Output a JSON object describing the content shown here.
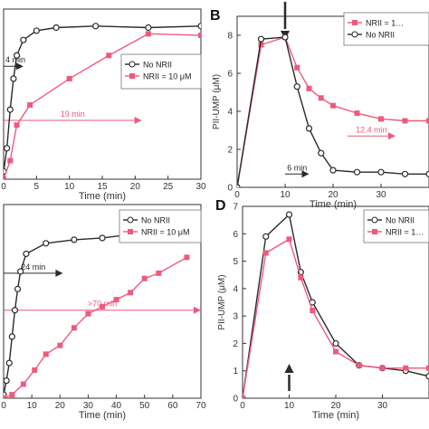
{
  "colors": {
    "black": "#2a2a2a",
    "pink": "#ee5a7e",
    "axis": "#333333"
  },
  "chart_data": [
    {
      "panel_label": "",
      "type": "line",
      "xlabel": "Time (min)",
      "ylabel": "",
      "xlim": [
        0,
        30
      ],
      "ylim": [
        0,
        1.1
      ],
      "xticks": [
        "0",
        "5",
        "10",
        "15",
        "20",
        "25",
        "30"
      ],
      "yticks": [],
      "legend": {
        "placement": "center-right",
        "entries": [
          "No NRII",
          "NRII = 10 μM"
        ]
      },
      "series": [
        {
          "name": "No NRII",
          "color": "#2a2a2a",
          "marker": "circle",
          "x": [
            0,
            0.5,
            1,
            1.5,
            2,
            3,
            5,
            8,
            14,
            22,
            30
          ],
          "y": [
            0.05,
            0.2,
            0.45,
            0.65,
            0.8,
            0.9,
            0.96,
            0.98,
            0.99,
            0.98,
            0.99
          ]
        },
        {
          "name": "NRII = 10 μM",
          "color": "#ee5a7e",
          "marker": "square",
          "x": [
            0,
            1,
            2,
            4,
            10,
            16,
            22,
            30
          ],
          "y": [
            0.0,
            0.12,
            0.35,
            0.48,
            0.65,
            0.8,
            0.94,
            0.93
          ]
        }
      ],
      "annotations": [
        {
          "text": "4 min",
          "color": "#2a2a2a",
          "x": 0,
          "y": 0.73,
          "x_end": 3
        },
        {
          "text": "19 min",
          "color": "#ee5a7e",
          "x": 0,
          "y": 0.38,
          "x_end": 21
        }
      ]
    },
    {
      "panel_label": "B",
      "type": "line",
      "xlabel": "Time (min)",
      "ylabel": "PII-UMP (μM)",
      "xlim": [
        0,
        40
      ],
      "ylim": [
        0,
        9
      ],
      "xticks": [
        "0",
        "10",
        "20",
        "30"
      ],
      "yticks": [
        "0",
        "2",
        "4",
        "6",
        "8"
      ],
      "legend": {
        "placement": "top-right",
        "entries": [
          "NRII = 1…",
          "No NRII"
        ]
      },
      "series": [
        {
          "name": "NRII = 1…",
          "color": "#ee5a7e",
          "marker": "square",
          "x": [
            0,
            5,
            10,
            12.5,
            15,
            17.5,
            20,
            25,
            30,
            35,
            40
          ],
          "y": [
            0,
            7.5,
            7.9,
            6.3,
            5.2,
            4.7,
            4.3,
            3.9,
            3.6,
            3.5,
            3.5
          ]
        },
        {
          "name": "No NRII",
          "color": "#2a2a2a",
          "marker": "circle",
          "x": [
            0,
            5,
            10,
            12.5,
            15,
            17.5,
            20,
            25,
            30,
            35,
            40
          ],
          "y": [
            0,
            7.8,
            7.9,
            5.3,
            3.1,
            1.8,
            0.9,
            0.8,
            0.8,
            0.7,
            0.7
          ]
        }
      ],
      "annotations": [
        {
          "text": "12.4 min",
          "color": "#ee5a7e",
          "x": 23,
          "y": 2.7,
          "x_end": 33
        },
        {
          "text": "6 min",
          "color": "#2a2a2a",
          "x": 10,
          "y": 0.7,
          "x_end": 15
        },
        {
          "text": "",
          "color": "#2a2a2a",
          "kind": "down-arrow",
          "x": 10
        }
      ]
    },
    {
      "panel_label": "",
      "type": "line",
      "xlabel": "Time (min)",
      "ylabel": "",
      "xlim": [
        0,
        70
      ],
      "ylim": [
        0,
        1.1
      ],
      "xticks": [
        "0",
        "10",
        "20",
        "30",
        "40",
        "50",
        "60",
        "70"
      ],
      "yticks": [],
      "legend": {
        "placement": "top-right",
        "entries": [
          "No NRII",
          "NRII = 10 μM"
        ]
      },
      "series": [
        {
          "name": "No NRII",
          "color": "#2a2a2a",
          "marker": "circle",
          "x": [
            0,
            1,
            2,
            3,
            4,
            5,
            6,
            8,
            15,
            25,
            35,
            45,
            65
          ],
          "y": [
            0.02,
            0.1,
            0.2,
            0.35,
            0.5,
            0.62,
            0.72,
            0.82,
            0.88,
            0.9,
            0.91,
            0.93,
            0.97
          ]
        },
        {
          "name": "NRII = 10 μM",
          "color": "#ee5a7e",
          "marker": "square",
          "x": [
            0,
            3,
            7,
            11,
            15,
            20,
            25,
            30,
            35,
            40,
            45,
            50,
            55,
            65
          ],
          "y": [
            0.0,
            0.02,
            0.08,
            0.16,
            0.25,
            0.3,
            0.4,
            0.48,
            0.52,
            0.56,
            0.6,
            0.68,
            0.71,
            0.8
          ]
        }
      ],
      "annotations": [
        {
          "text": "24 min",
          "color": "#2a2a2a",
          "x": 0,
          "y": 0.71,
          "x_end": 21
        },
        {
          "text": ">70 min",
          "color": "#ee5a7e",
          "x": 0,
          "y": 0.5,
          "x_end": 70
        }
      ]
    },
    {
      "panel_label": "D",
      "type": "line",
      "xlabel": "Time (min)",
      "ylabel": "PII-UMP (μM)",
      "xlim": [
        0,
        40
      ],
      "ylim": [
        0,
        7
      ],
      "xticks": [
        "0",
        "10",
        "20",
        "30"
      ],
      "yticks": [
        "0",
        "1",
        "2",
        "3",
        "4",
        "5",
        "6",
        "7"
      ],
      "legend": {
        "placement": "top-right",
        "entries": [
          "No NRII",
          "NRII = 1…"
        ]
      },
      "series": [
        {
          "name": "No NRII",
          "color": "#2a2a2a",
          "marker": "circle",
          "x": [
            0,
            5,
            10,
            12.5,
            15,
            20,
            25,
            30,
            35,
            40
          ],
          "y": [
            0,
            5.9,
            6.7,
            4.6,
            3.5,
            2.0,
            1.2,
            1.1,
            1.0,
            0.8
          ]
        },
        {
          "name": "NRII = 1…",
          "color": "#ee5a7e",
          "marker": "square",
          "x": [
            0,
            5,
            10,
            12.5,
            15,
            20,
            25,
            30,
            35,
            40
          ],
          "y": [
            0,
            5.3,
            5.8,
            4.4,
            3.2,
            1.7,
            1.2,
            1.1,
            1.1,
            1.1
          ]
        }
      ],
      "annotations": [
        {
          "text": "",
          "color": "#2a2a2a",
          "kind": "up-arrow",
          "x": 10
        }
      ]
    }
  ]
}
